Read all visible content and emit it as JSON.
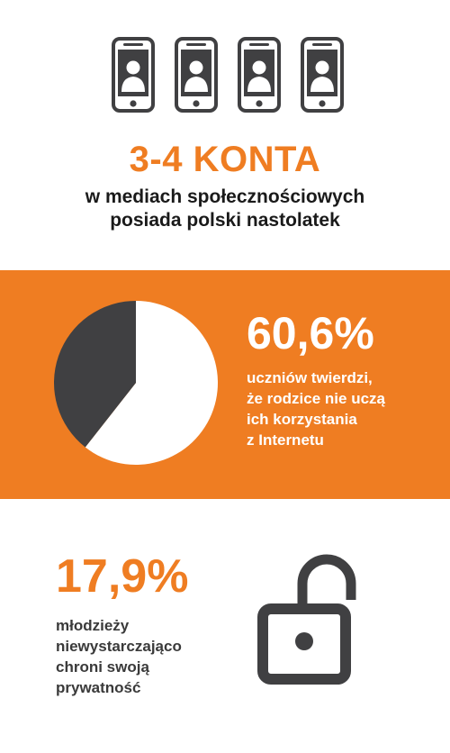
{
  "colors": {
    "accent": "#ef7d22",
    "dark": "#404042",
    "white": "#ffffff"
  },
  "icons": {
    "phone": "smartphone-user-icon",
    "lock": "unlocked-padlock-icon"
  },
  "header": {
    "phone_count": 4,
    "headline": "3-4 KONTA",
    "subline_1": "w mediach społecznościowych",
    "subline_2": "posiada polski nastolatek"
  },
  "band": {
    "value": "60,6%",
    "caption_lines": [
      "uczniów twierdzi,",
      "że rodzice nie uczą",
      "ich korzystania",
      "z Internetu"
    ]
  },
  "chart_data": {
    "type": "pie",
    "slices": [
      {
        "value": 60.6,
        "color": "#ffffff"
      },
      {
        "value": 39.4,
        "color": "#404042"
      }
    ]
  },
  "bottom": {
    "value": "17,9%",
    "caption_lines": [
      "młodzieży",
      "niewystarczająco",
      "chroni swoją",
      "prywatność"
    ]
  }
}
